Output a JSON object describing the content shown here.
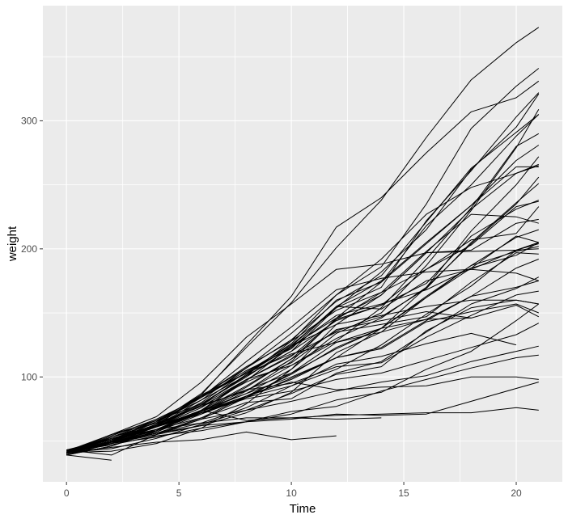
{
  "chart_data": {
    "type": "line",
    "title": "",
    "xlabel": "Time",
    "ylabel": "weight",
    "legend": "none",
    "panel_bg": "#EBEBEB",
    "grid_color": "#FFFFFF",
    "line_color": "#000000",
    "tick_mark_color": "#333333",
    "tick_label_color": "#4D4D4D",
    "xlim": [
      -1.05,
      22.05
    ],
    "ylim": [
      18.1,
      389.9
    ],
    "x_ticks": [
      0,
      5,
      10,
      15,
      20
    ],
    "y_ticks": [
      100,
      200,
      300
    ],
    "x_minor_ticks": [
      2.5,
      7.5,
      12.5,
      17.5
    ],
    "y_minor_ticks": [
      50,
      150,
      250,
      350
    ],
    "times": [
      0,
      2,
      4,
      6,
      8,
      10,
      12,
      14,
      16,
      18,
      20,
      21
    ],
    "series": [
      {
        "chick": 1,
        "weights": [
          42,
          51,
          59,
          64,
          76,
          93,
          106,
          125,
          149,
          171,
          199,
          205
        ]
      },
      {
        "chick": 2,
        "weights": [
          40,
          49,
          58,
          72,
          84,
          103,
          122,
          138,
          162,
          187,
          209,
          215
        ]
      },
      {
        "chick": 3,
        "weights": [
          43,
          39,
          55,
          67,
          84,
          99,
          115,
          138,
          163,
          187,
          198,
          202
        ]
      },
      {
        "chick": 4,
        "weights": [
          42,
          49,
          56,
          67,
          74,
          87,
          102,
          108,
          136,
          154,
          160,
          157
        ]
      },
      {
        "chick": 5,
        "weights": [
          41,
          42,
          48,
          60,
          79,
          106,
          141,
          164,
          197,
          199,
          220,
          223
        ]
      },
      {
        "chick": 6,
        "weights": [
          41,
          49,
          59,
          74,
          97,
          124,
          141,
          148,
          155,
          160,
          160,
          157
        ]
      },
      {
        "chick": 7,
        "weights": [
          41,
          49,
          57,
          71,
          89,
          112,
          146,
          174,
          218,
          250,
          288,
          305
        ]
      },
      {
        "chick": 8,
        "weights": [
          42,
          50,
          61,
          71,
          84,
          93,
          110,
          116,
          126,
          134,
          125
        ]
      },
      {
        "chick": 9,
        "weights": [
          42,
          51,
          59,
          68,
          85,
          96,
          90,
          92,
          93,
          100,
          100,
          98
        ]
      },
      {
        "chick": 10,
        "weights": [
          41,
          44,
          52,
          63,
          74,
          81,
          89,
          96,
          101,
          112,
          120,
          124
        ]
      },
      {
        "chick": 11,
        "weights": [
          43,
          51,
          63,
          84,
          112,
          139,
          168,
          177,
          182,
          184,
          181,
          175
        ]
      },
      {
        "chick": 12,
        "weights": [
          41,
          49,
          56,
          62,
          72,
          88,
          119,
          135,
          162,
          185,
          195,
          205
        ]
      },
      {
        "chick": 13,
        "weights": [
          41,
          48,
          53,
          60,
          65,
          67,
          71,
          70,
          71,
          81,
          91,
          96
        ]
      },
      {
        "chick": 14,
        "weights": [
          41,
          49,
          62,
          79,
          101,
          128,
          164,
          192,
          227,
          248,
          259,
          266
        ]
      },
      {
        "chick": 15,
        "weights": [
          41,
          49,
          56,
          64,
          68,
          68,
          67,
          68
        ]
      },
      {
        "chick": 16,
        "weights": [
          41,
          45,
          49,
          51,
          57,
          51,
          54
        ]
      },
      {
        "chick": 17,
        "weights": [
          42,
          51,
          61,
          72,
          83,
          89,
          98,
          103,
          113,
          123,
          133,
          142
        ]
      },
      {
        "chick": 18,
        "weights": [
          39,
          35
        ]
      },
      {
        "chick": 19,
        "weights": [
          43,
          48,
          55,
          62,
          65,
          71,
          82,
          88,
          106,
          120,
          144,
          157
        ]
      },
      {
        "chick": 20,
        "weights": [
          41,
          47,
          54,
          58,
          65,
          73,
          77,
          89,
          98,
          107,
          115,
          117
        ]
      },
      {
        "chick": 21,
        "weights": [
          40,
          50,
          62,
          86,
          125,
          163,
          217,
          240,
          275,
          307,
          318,
          331
        ]
      },
      {
        "chick": 22,
        "weights": [
          41,
          55,
          64,
          77,
          90,
          95,
          108,
          111,
          131,
          148,
          164,
          167
        ]
      },
      {
        "chick": 23,
        "weights": [
          43,
          52,
          61,
          73,
          90,
          103,
          127,
          135,
          145,
          163,
          170,
          175
        ]
      },
      {
        "chick": 24,
        "weights": [
          42,
          52,
          58,
          74,
          66,
          68,
          70,
          71,
          72,
          72,
          76,
          74
        ]
      },
      {
        "chick": 25,
        "weights": [
          40,
          49,
          62,
          78,
          102,
          124,
          146,
          164,
          197,
          231,
          259,
          265
        ]
      },
      {
        "chick": 26,
        "weights": [
          42,
          48,
          57,
          74,
          93,
          114,
          136,
          147,
          169,
          205,
          236,
          251
        ]
      },
      {
        "chick": 27,
        "weights": [
          39,
          46,
          58,
          73,
          87,
          100,
          115,
          123,
          144,
          163,
          185,
          192
        ]
      },
      {
        "chick": 28,
        "weights": [
          39,
          46,
          58,
          73,
          92,
          114,
          145,
          156,
          184,
          207,
          212,
          233
        ]
      },
      {
        "chick": 29,
        "weights": [
          39,
          48,
          59,
          74,
          87,
          106,
          134,
          150,
          187,
          230,
          279,
          309
        ]
      },
      {
        "chick": 30,
        "weights": [
          42,
          48,
          59,
          72,
          85,
          98,
          115,
          122,
          143,
          151,
          157,
          150
        ]
      },
      {
        "chick": 31,
        "weights": [
          42,
          53,
          62,
          73,
          85,
          102,
          123,
          138,
          170,
          204,
          235,
          256
        ]
      },
      {
        "chick": 32,
        "weights": [
          41,
          49,
          65,
          82,
          107,
          129,
          159,
          179,
          221,
          263,
          291,
          305
        ]
      },
      {
        "chick": 33,
        "weights": [
          39,
          50,
          63,
          77,
          96,
          111,
          137,
          144,
          151,
          146,
          156,
          147
        ]
      },
      {
        "chick": 34,
        "weights": [
          41,
          49,
          63,
          85,
          107,
          134,
          164,
          186,
          235,
          294,
          327,
          341
        ]
      },
      {
        "chick": 35,
        "weights": [
          41,
          53,
          64,
          87,
          123,
          158,
          201,
          238,
          287,
          332,
          361,
          373
        ]
      },
      {
        "chick": 36,
        "weights": [
          39,
          48,
          61,
          76,
          98,
          116,
          145,
          166,
          198,
          227,
          225,
          220
        ]
      },
      {
        "chick": 37,
        "weights": [
          41,
          48,
          56,
          68,
          80,
          83,
          103,
          112,
          135,
          157,
          169,
          178
        ]
      },
      {
        "chick": 38,
        "weights": [
          41,
          49,
          61,
          74,
          98,
          109,
          128,
          154,
          192,
          232,
          280,
          290
        ]
      },
      {
        "chick": 39,
        "weights": [
          42,
          50,
          61,
          78,
          89,
          109,
          130,
          146,
          170,
          214,
          250,
          272
        ]
      },
      {
        "chick": 40,
        "weights": [
          41,
          55,
          66,
          79,
          101,
          120,
          154,
          182,
          215,
          262,
          295,
          321
        ]
      },
      {
        "chick": 41,
        "weights": [
          42,
          51,
          66,
          85,
          103,
          124,
          155,
          153,
          175,
          184,
          199,
          204
        ]
      },
      {
        "chick": 42,
        "weights": [
          42,
          49,
          63,
          84,
          103,
          126,
          160,
          174,
          204,
          234,
          269,
          281
        ]
      },
      {
        "chick": 43,
        "weights": [
          42,
          55,
          69,
          96,
          131,
          157,
          184,
          188,
          197,
          198,
          199,
          200
        ]
      },
      {
        "chick": 44,
        "weights": [
          42,
          51,
          65,
          86,
          103,
          118,
          127,
          138,
          145,
          146
        ]
      },
      {
        "chick": 45,
        "weights": [
          41,
          50,
          61,
          78,
          98,
          117,
          135,
          141,
          147,
          174,
          197,
          196
        ]
      },
      {
        "chick": 46,
        "weights": [
          40,
          52,
          62,
          82,
          101,
          120,
          144,
          156,
          173,
          210,
          231,
          238
        ]
      },
      {
        "chick": 47,
        "weights": [
          41,
          53,
          66,
          79,
          100,
          123,
          148,
          157,
          168,
          185,
          210,
          205
        ]
      },
      {
        "chick": 48,
        "weights": [
          39,
          50,
          62,
          80,
          104,
          125,
          154,
          170,
          222,
          261,
          303,
          322
        ]
      },
      {
        "chick": 49,
        "weights": [
          40,
          53,
          64,
          85,
          108,
          128,
          152,
          166,
          184,
          203,
          233,
          237
        ]
      },
      {
        "chick": 50,
        "weights": [
          41,
          54,
          67,
          84,
          105,
          122,
          155,
          175,
          205,
          234,
          264,
          264
        ]
      }
    ]
  }
}
